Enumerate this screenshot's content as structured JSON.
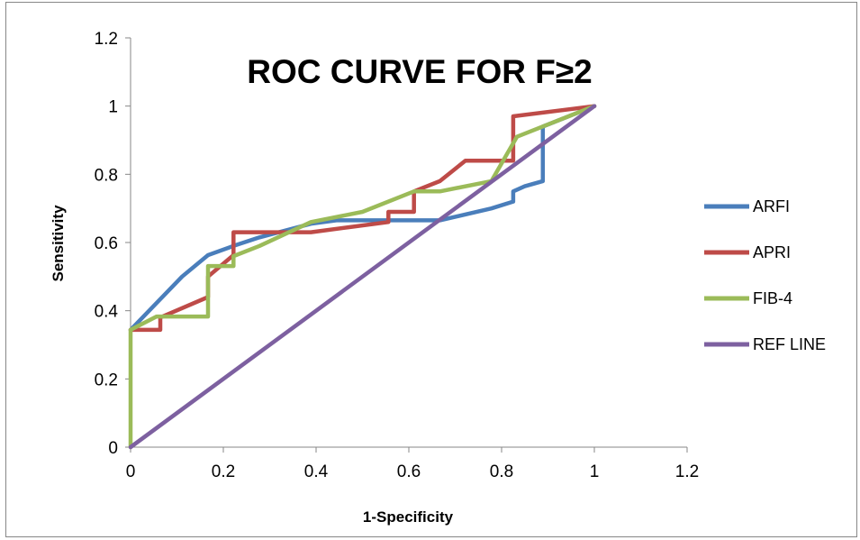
{
  "chart_data": {
    "type": "line",
    "title": "ROC CURVE FOR F≥2",
    "xlabel": "1-Specificity",
    "ylabel": "Sensitivity",
    "xlim": [
      0,
      1.2
    ],
    "ylim": [
      0,
      1.2
    ],
    "x_ticks": [
      "0",
      "0.2",
      "0.4",
      "0.6",
      "0.8",
      "1",
      "1.2"
    ],
    "y_ticks": [
      "0",
      "0.2",
      "0.4",
      "0.6",
      "0.8",
      "1",
      "1.2"
    ],
    "x_tick_values": [
      0,
      0.2,
      0.4,
      0.6,
      0.8,
      1,
      1.2
    ],
    "y_tick_values": [
      0,
      0.2,
      0.4,
      0.6,
      0.8,
      1,
      1.2
    ],
    "grid": false,
    "legend_position": "right",
    "series": [
      {
        "name": "ARFI",
        "color": "#4a7ebb",
        "points": [
          [
            0,
            0.344
          ],
          [
            0.111,
            0.5
          ],
          [
            0.167,
            0.563
          ],
          [
            0.222,
            0.59
          ],
          [
            0.278,
            0.615
          ],
          [
            0.389,
            0.655
          ],
          [
            0.444,
            0.665
          ],
          [
            0.667,
            0.665
          ],
          [
            0.778,
            0.7
          ],
          [
            0.825,
            0.72
          ],
          [
            0.825,
            0.75
          ],
          [
            0.85,
            0.765
          ],
          [
            0.889,
            0.78
          ],
          [
            0.889,
            0.94
          ],
          [
            1,
            1
          ]
        ]
      },
      {
        "name": "APRI",
        "color": "#be4b48",
        "points": [
          [
            0,
            0.344
          ],
          [
            0.064,
            0.344
          ],
          [
            0.064,
            0.38
          ],
          [
            0.167,
            0.44
          ],
          [
            0.167,
            0.5
          ],
          [
            0.222,
            0.563
          ],
          [
            0.222,
            0.63
          ],
          [
            0.389,
            0.63
          ],
          [
            0.556,
            0.66
          ],
          [
            0.556,
            0.69
          ],
          [
            0.611,
            0.69
          ],
          [
            0.611,
            0.75
          ],
          [
            0.667,
            0.78
          ],
          [
            0.722,
            0.84
          ],
          [
            0.825,
            0.84
          ],
          [
            0.825,
            0.97
          ],
          [
            1,
            1
          ]
        ]
      },
      {
        "name": "FIB-4",
        "color": "#9bbb59",
        "points": [
          [
            0,
            0
          ],
          [
            0,
            0.344
          ],
          [
            0.056,
            0.383
          ],
          [
            0.167,
            0.383
          ],
          [
            0.167,
            0.531
          ],
          [
            0.222,
            0.531
          ],
          [
            0.222,
            0.56
          ],
          [
            0.278,
            0.59
          ],
          [
            0.389,
            0.66
          ],
          [
            0.5,
            0.69
          ],
          [
            0.611,
            0.75
          ],
          [
            0.667,
            0.75
          ],
          [
            0.778,
            0.78
          ],
          [
            0.833,
            0.91
          ],
          [
            1,
            1
          ]
        ]
      },
      {
        "name": "REF LINE",
        "color": "#7d60a0",
        "points": [
          [
            0,
            0
          ],
          [
            1,
            1
          ]
        ]
      }
    ]
  }
}
